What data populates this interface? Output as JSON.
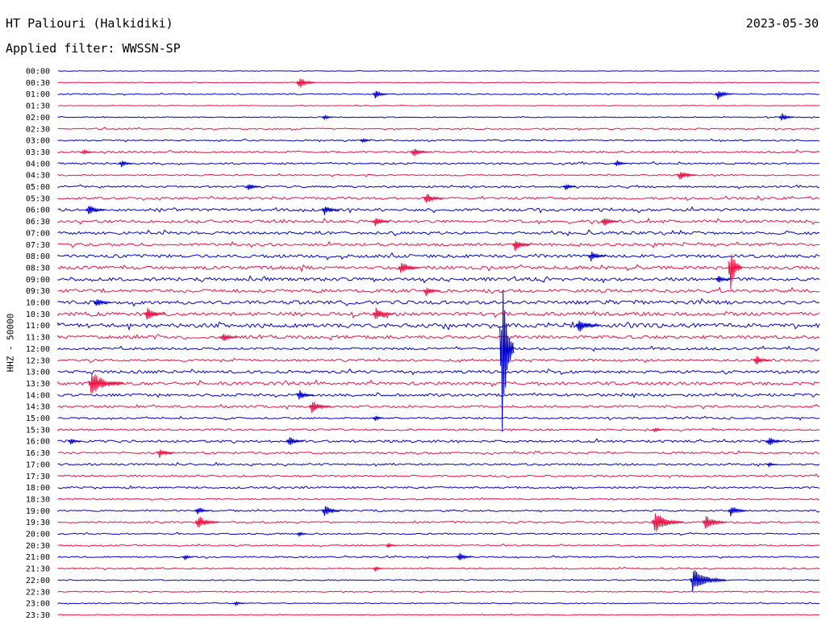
{
  "header": {
    "station": "HT Paliouri (Halkidiki)",
    "date": "2023-05-30",
    "filter": "Applied filter: WWSSN-SP"
  },
  "chart_data": {
    "type": "line",
    "ylabel": "HHZ - 50000",
    "colors": {
      "even_rows": "#0000cc",
      "odd_rows": "#ee1144"
    },
    "rows": [
      "00:00",
      "00:30",
      "01:00",
      "01:30",
      "02:00",
      "02:30",
      "03:00",
      "03:30",
      "04:00",
      "04:30",
      "05:00",
      "05:30",
      "06:00",
      "06:30",
      "07:00",
      "07:30",
      "08:00",
      "08:30",
      "09:00",
      "09:30",
      "10:00",
      "10:30",
      "11:00",
      "11:30",
      "12:00",
      "12:30",
      "13:00",
      "13:30",
      "14:00",
      "14:30",
      "15:00",
      "15:30",
      "16:00",
      "16:30",
      "17:00",
      "17:30",
      "18:00",
      "18:30",
      "19:00",
      "19:30",
      "20:00",
      "20:30",
      "21:00",
      "21:30",
      "22:00",
      "22:30",
      "23:00",
      "23:30"
    ],
    "row_noise": [
      0.6,
      0.8,
      1.2,
      0.8,
      1.0,
      1.5,
      1.5,
      2.0,
      2.0,
      1.5,
      2.0,
      2.5,
      3.0,
      3.0,
      3.0,
      3.0,
      3.5,
      3.5,
      3.5,
      3.5,
      4.0,
      4.0,
      4.5,
      3.5,
      2.5,
      2.5,
      3.0,
      3.5,
      3.0,
      2.5,
      2.0,
      2.0,
      2.5,
      2.0,
      2.0,
      2.0,
      2.0,
      1.5,
      1.8,
      1.8,
      1.5,
      1.5,
      1.5,
      1.5,
      1.2,
      1.0,
      1.0,
      1.0
    ],
    "events": [
      {
        "row": 1,
        "minute": 9.5,
        "amp": 8
      },
      {
        "row": 2,
        "minute": 12.5,
        "amp": 6
      },
      {
        "row": 2,
        "minute": 26,
        "amp": 7
      },
      {
        "row": 4,
        "minute": 10.5,
        "amp": 4
      },
      {
        "row": 4,
        "minute": 28.5,
        "amp": 6
      },
      {
        "row": 6,
        "minute": 12,
        "amp": 4
      },
      {
        "row": 7,
        "minute": 1,
        "amp": 4
      },
      {
        "row": 7,
        "minute": 14,
        "amp": 7
      },
      {
        "row": 8,
        "minute": 2.5,
        "amp": 5
      },
      {
        "row": 8,
        "minute": 22,
        "amp": 5
      },
      {
        "row": 9,
        "minute": 24.5,
        "amp": 8
      },
      {
        "row": 10,
        "minute": 7.5,
        "amp": 6
      },
      {
        "row": 10,
        "minute": 20,
        "amp": 5
      },
      {
        "row": 11,
        "minute": 14.5,
        "amp": 8
      },
      {
        "row": 12,
        "minute": 1.2,
        "amp": 8
      },
      {
        "row": 12,
        "minute": 10.5,
        "amp": 7
      },
      {
        "row": 13,
        "minute": 12.5,
        "amp": 7
      },
      {
        "row": 13,
        "minute": 21.5,
        "amp": 7
      },
      {
        "row": 15,
        "minute": 18,
        "amp": 8
      },
      {
        "row": 16,
        "minute": 21,
        "amp": 7
      },
      {
        "row": 17,
        "minute": 13.5,
        "amp": 9
      },
      {
        "row": 17,
        "minute": 26.5,
        "amp": 35
      },
      {
        "row": 18,
        "minute": 26,
        "amp": 6
      },
      {
        "row": 19,
        "minute": 14.5,
        "amp": 7
      },
      {
        "row": 20,
        "minute": 1.5,
        "amp": 7
      },
      {
        "row": 21,
        "minute": 3.5,
        "amp": 9
      },
      {
        "row": 21,
        "minute": 12.5,
        "amp": 9
      },
      {
        "row": 22,
        "minute": 20.5,
        "amp": 10
      },
      {
        "row": 23,
        "minute": 6.5,
        "amp": 7
      },
      {
        "row": 24,
        "minute": 17.5,
        "amp": 120
      },
      {
        "row": 25,
        "minute": 27.5,
        "amp": 7
      },
      {
        "row": 27,
        "minute": 1.3,
        "amp": 16
      },
      {
        "row": 28,
        "minute": 9.5,
        "amp": 7
      },
      {
        "row": 29,
        "minute": 10,
        "amp": 9
      },
      {
        "row": 30,
        "minute": 12.5,
        "amp": 4
      },
      {
        "row": 31,
        "minute": 23.5,
        "amp": 4
      },
      {
        "row": 32,
        "minute": 0.5,
        "amp": 5
      },
      {
        "row": 32,
        "minute": 9.1,
        "amp": 7
      },
      {
        "row": 32,
        "minute": 28,
        "amp": 7
      },
      {
        "row": 33,
        "minute": 4,
        "amp": 7
      },
      {
        "row": 34,
        "minute": 28,
        "amp": 3
      },
      {
        "row": 38,
        "minute": 5.5,
        "amp": 6
      },
      {
        "row": 38,
        "minute": 10.5,
        "amp": 8
      },
      {
        "row": 38,
        "minute": 26.5,
        "amp": 8
      },
      {
        "row": 39,
        "minute": 5.5,
        "amp": 10
      },
      {
        "row": 39,
        "minute": 23.5,
        "amp": 14
      },
      {
        "row": 39,
        "minute": 25.5,
        "amp": 10
      },
      {
        "row": 40,
        "minute": 9.5,
        "amp": 4
      },
      {
        "row": 41,
        "minute": 13,
        "amp": 4
      },
      {
        "row": 42,
        "minute": 5,
        "amp": 4
      },
      {
        "row": 42,
        "minute": 15.8,
        "amp": 6
      },
      {
        "row": 43,
        "minute": 12.5,
        "amp": 4
      },
      {
        "row": 44,
        "minute": 25,
        "amp": 16
      },
      {
        "row": 46,
        "minute": 7,
        "amp": 3
      }
    ]
  }
}
